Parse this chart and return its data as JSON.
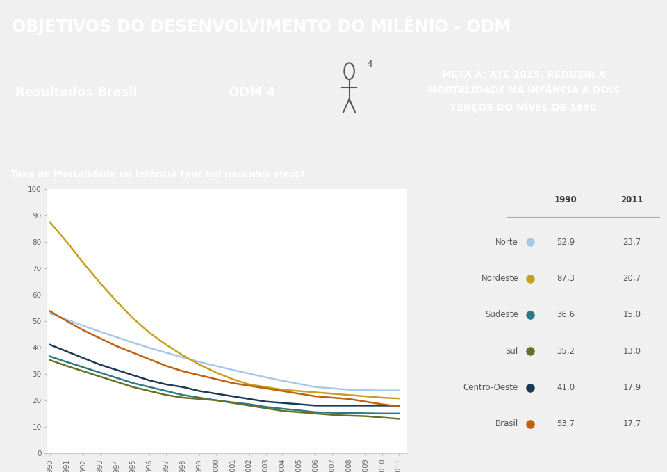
{
  "title_bar": "OBJETIVOS DO DESENVOLVIMENTO DO MILÊNIO - ODM",
  "title_bar_bg": "#4a90c4",
  "title_bar_color": "#ffffff",
  "subtitle_left": "Resultados Brasil",
  "subtitle_left_bg": "#4a90c4",
  "subtitle_left_color": "#ffffff",
  "subtitle_mid": "ODM 4",
  "subtitle_mid_bg": "#9a9a9a",
  "subtitle_mid_color": "#ffffff",
  "subtitle_icon_bg": "#b8d4e8",
  "meta_text": "META A: ATÉ 2015, REDUZIR A\nMORTALIDADE NA INFÂNCIA A DOIS\nTERÇOS DO NÍVEL DE 1990",
  "meta_bg": "#aaaaaa",
  "meta_color": "#ffffff",
  "chart_label": "Taxa de Mortalidade na Infância (por mil nascidos vivos)",
  "chart_label_bg": "#4a90c4",
  "chart_label_color": "#ffffff",
  "years": [
    1990,
    1991,
    1992,
    1993,
    1994,
    1995,
    1996,
    1997,
    1998,
    1999,
    2000,
    2001,
    2002,
    2003,
    2004,
    2005,
    2006,
    2007,
    2008,
    2009,
    2010,
    2011
  ],
  "series": {
    "Norte": [
      52.9,
      50.5,
      48.2,
      46.0,
      43.9,
      41.8,
      39.8,
      38.0,
      36.2,
      34.5,
      33.0,
      31.5,
      30.1,
      28.7,
      27.4,
      26.2,
      25.0,
      24.5,
      24.0,
      23.8,
      23.7,
      23.7
    ],
    "Nordeste": [
      87.3,
      80.0,
      72.0,
      64.5,
      57.5,
      51.0,
      45.5,
      41.0,
      37.0,
      33.5,
      30.5,
      28.0,
      26.0,
      25.0,
      24.0,
      23.5,
      23.0,
      22.5,
      22.0,
      21.5,
      21.0,
      20.7
    ],
    "Sudeste": [
      36.6,
      34.5,
      32.5,
      30.5,
      28.5,
      26.5,
      25.0,
      23.5,
      22.0,
      21.0,
      20.0,
      19.2,
      18.5,
      17.5,
      16.8,
      16.2,
      15.5,
      15.3,
      15.2,
      15.1,
      15.0,
      15.0
    ],
    "Sul": [
      35.2,
      33.0,
      31.0,
      29.0,
      27.0,
      25.0,
      23.5,
      22.0,
      21.0,
      20.5,
      20.0,
      19.0,
      18.0,
      17.0,
      16.0,
      15.5,
      15.0,
      14.5,
      14.2,
      14.0,
      13.5,
      13.0
    ],
    "Centro-Oeste": [
      41.0,
      38.5,
      36.0,
      33.5,
      31.5,
      29.5,
      27.5,
      26.0,
      25.0,
      23.5,
      22.5,
      21.5,
      20.5,
      19.5,
      19.0,
      18.5,
      18.0,
      18.0,
      18.0,
      18.0,
      18.0,
      17.9
    ],
    "Brasil": [
      53.7,
      50.0,
      46.5,
      43.5,
      40.5,
      38.0,
      35.5,
      33.0,
      31.0,
      29.5,
      28.0,
      26.5,
      25.5,
      24.5,
      23.5,
      22.5,
      21.5,
      21.0,
      20.5,
      19.5,
      18.5,
      17.7
    ]
  },
  "colors": {
    "Norte": "#a8c8e8",
    "Nordeste": "#c8a020",
    "Sudeste": "#2a7a8a",
    "Sul": "#6a7020",
    "Centro-Oeste": "#1a3a5a",
    "Brasil": "#c06010"
  },
  "legend_data": {
    "Norte": {
      "val1990": "52,9",
      "val2011": "23,7"
    },
    "Nordeste": {
      "val1990": "87,3",
      "val2011": "20,7"
    },
    "Sudeste": {
      "val1990": "36,6",
      "val2011": "15,0"
    },
    "Sul": {
      "val1990": "35,2",
      "val2011": "13,0"
    },
    "Centro-Oeste": {
      "val1990": "41,0",
      "val2011": "17,9"
    },
    "Brasil": {
      "val1990": "53,7",
      "val2011": "17,7"
    }
  },
  "ylim": [
    0,
    100
  ],
  "yticks": [
    0,
    10,
    20,
    30,
    40,
    50,
    60,
    70,
    80,
    90,
    100
  ],
  "bg_color": "#f0f0f0",
  "plot_bg": "#ffffff"
}
